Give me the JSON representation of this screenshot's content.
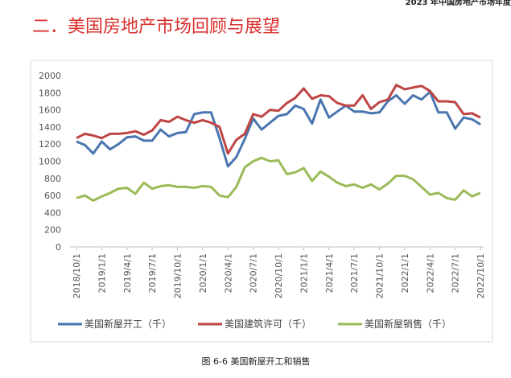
{
  "header": {
    "running_title": "2023 年中国房地产市场年度",
    "section_title": "二．美国房地产市场回顾与展望"
  },
  "caption": "图 6-6  美国新屋开工和销售",
  "chart_data": {
    "type": "line",
    "categories": [
      "2018/10/1",
      null,
      null,
      "2019/1/1",
      null,
      null,
      "2019/4/1",
      null,
      null,
      "2019/7/1",
      null,
      null,
      "2019/10/1",
      null,
      null,
      "2020/1/1",
      null,
      null,
      "2020/4/1",
      null,
      null,
      "2020/7/1",
      null,
      null,
      "2020/10/1",
      null,
      null,
      "2021/1/1",
      null,
      null,
      "2021/4/1",
      null,
      null,
      "2021/7/1",
      null,
      null,
      "2021/10/1",
      null,
      null,
      "2022/1/1",
      null,
      null,
      "2022/4/1",
      null,
      null,
      "2022/7/1",
      null,
      null,
      "2022/10/1"
    ],
    "series": [
      {
        "name": "美国新屋开工（千）",
        "color": "#4a76b0",
        "values": [
          1230,
          1190,
          1090,
          1230,
          1140,
          1200,
          1280,
          1290,
          1240,
          1240,
          1370,
          1290,
          1330,
          1340,
          1550,
          1570,
          1570,
          1270,
          940,
          1050,
          1260,
          1500,
          1370,
          1450,
          1530,
          1550,
          1650,
          1610,
          1440,
          1720,
          1510,
          1580,
          1650,
          1580,
          1580,
          1560,
          1570,
          1700,
          1770,
          1670,
          1770,
          1720,
          1810,
          1570,
          1570,
          1380,
          1510,
          1490,
          1430
        ]
      },
      {
        "name": "美国建筑许可（千）",
        "color": "#bf4545",
        "values": [
          1270,
          1320,
          1300,
          1270,
          1320,
          1320,
          1330,
          1350,
          1310,
          1360,
          1480,
          1460,
          1520,
          1480,
          1450,
          1480,
          1450,
          1400,
          1090,
          1250,
          1320,
          1550,
          1520,
          1600,
          1590,
          1680,
          1740,
          1850,
          1730,
          1770,
          1760,
          1680,
          1650,
          1650,
          1770,
          1610,
          1690,
          1720,
          1890,
          1840,
          1860,
          1880,
          1820,
          1700,
          1700,
          1690,
          1550,
          1560,
          1510
        ]
      },
      {
        "name": "美国新屋销售（千）",
        "color": "#9bbb59",
        "values": [
          570,
          600,
          540,
          590,
          630,
          680,
          690,
          620,
          750,
          680,
          710,
          720,
          700,
          700,
          690,
          710,
          700,
          600,
          580,
          700,
          930,
          1000,
          1040,
          1000,
          1010,
          850,
          870,
          920,
          770,
          880,
          820,
          750,
          710,
          730,
          690,
          730,
          670,
          740,
          830,
          830,
          790,
          700,
          610,
          630,
          570,
          550,
          660,
          590,
          630
        ]
      }
    ],
    "ylim": [
      0,
      2000
    ],
    "yticks": [
      0,
      200,
      400,
      600,
      800,
      1000,
      1200,
      1400,
      1600,
      1800,
      2000
    ],
    "grid": false,
    "legend": "bottom"
  }
}
